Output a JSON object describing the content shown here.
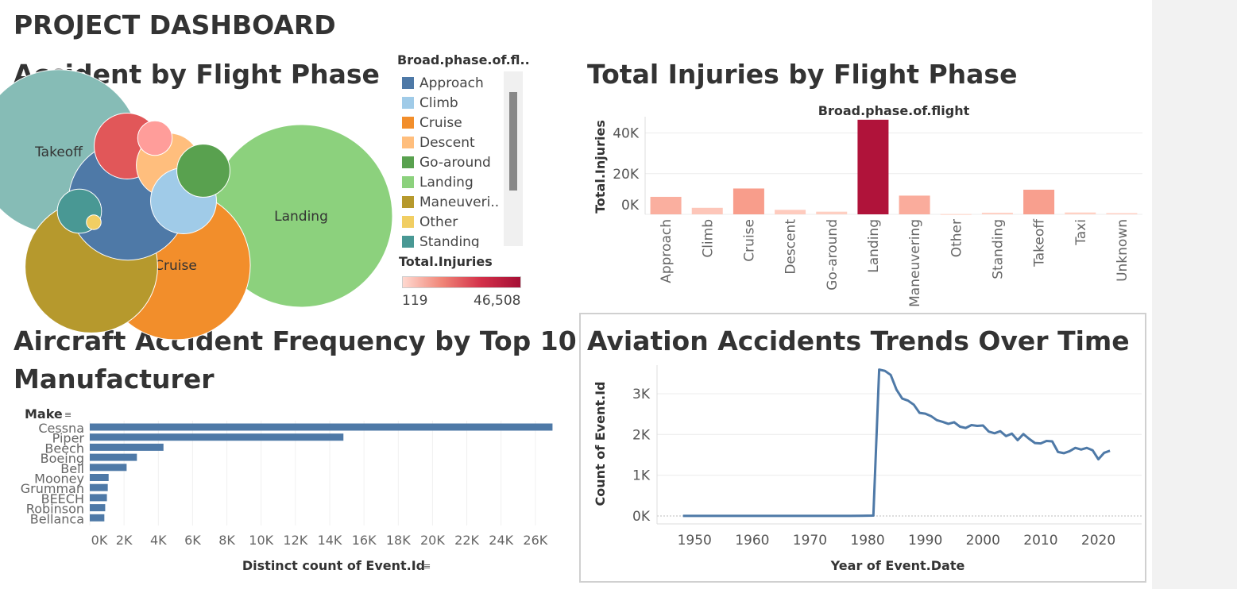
{
  "dashboard_title": "PROJECT DASHBOARD",
  "colors": {
    "Approach": "#4e79a7",
    "Climb": "#a0cbe8",
    "Cruise": "#f28e2b",
    "Descent": "#ffbe7d",
    "Go-around": "#59a14f",
    "Landing": "#8cd17d",
    "Maneuvering": "#b6992d",
    "Other": "#f1ce63",
    "Standing": "#499894",
    "Takeoff": "#86bcb6",
    "Taxi": "#e15759",
    "Unknown": "#ff9d9a",
    "bar_blue": "#4e79a7",
    "line_blue": "#4e79a7"
  },
  "bubble_panel": {
    "title": "Accident by Flight Phase",
    "legend_title": "Broad.phase.of.fl..",
    "legend_items": [
      "Approach",
      "Climb",
      "Cruise",
      "Descent",
      "Go-around",
      "Landing",
      "Maneuveri..",
      "Other",
      "Standing"
    ],
    "legend_keys": [
      "Approach",
      "Climb",
      "Cruise",
      "Descent",
      "Go-around",
      "Landing",
      "Maneuvering",
      "Other",
      "Standing"
    ],
    "color_legend_title": "Total.Injuries",
    "color_min": "119",
    "color_max": "46,508"
  },
  "injury_panel": {
    "title": "Total Injuries by Flight Phase"
  },
  "make_panel": {
    "title_line1": "Aircraft Accident Frequency by  Top 10",
    "title_line2": "Manufacturer"
  },
  "trend_panel": {
    "title": "Aviation Accidents Trends Over Time"
  },
  "chart_data": [
    {
      "type": "bubble",
      "title": "Accident by Flight Phase",
      "size_label": "accident count by Broad.phase.of.flight",
      "categories": [
        "Landing",
        "Takeoff",
        "Cruise",
        "Maneuvering",
        "Approach",
        "Taxi",
        "Descent",
        "Climb",
        "Go-around",
        "Standing",
        "Unknown",
        "Other"
      ],
      "labels_shown": [
        "Landing",
        "Takeoff",
        "Cruise"
      ],
      "values": [
        15400,
        12400,
        10300,
        8100,
        6500,
        2000,
        1900,
        2000,
        1300,
        900,
        550,
        100
      ]
    },
    {
      "type": "bar",
      "title": "Broad.phase.of.flight",
      "xlabel": "",
      "ylabel": "Total.Injuries",
      "categories": [
        "Approach",
        "Climb",
        "Cruise",
        "Descent",
        "Go-around",
        "Landing",
        "Maneuvering",
        "Other",
        "Standing",
        "Takeoff",
        "Taxi",
        "Unknown"
      ],
      "values": [
        8600,
        3200,
        12700,
        2200,
        1300,
        46508,
        9200,
        119,
        800,
        12100,
        900,
        600
      ],
      "yticks": [
        "0K",
        "20K",
        "40K"
      ],
      "ylim": [
        0,
        48000
      ],
      "color_scale": {
        "field": "Total.Injuries",
        "min": 119,
        "max": 46508
      }
    },
    {
      "type": "bar",
      "orientation": "horizontal",
      "title": "Make",
      "xlabel": "Distinct count of Event.Id",
      "ylabel": "Make",
      "categories": [
        "Cessna",
        "Piper",
        "Beech",
        "Boeing",
        "Bell",
        "Mooney",
        "Grumman",
        "BEECH",
        "Robinson",
        "Bellanca"
      ],
      "values": [
        27000,
        14800,
        4300,
        2750,
        2150,
        1100,
        1050,
        1000,
        900,
        850
      ],
      "xticks": [
        "0K",
        "2K",
        "4K",
        "6K",
        "8K",
        "10K",
        "12K",
        "14K",
        "16K",
        "18K",
        "20K",
        "22K",
        "24K",
        "26K"
      ],
      "xlim": [
        0,
        28000
      ]
    },
    {
      "type": "line",
      "title": "Aviation Accidents Trends Over Time",
      "xlabel": "Year of Event.Date",
      "ylabel": "Count of Event.Id",
      "xticks": [
        "1950",
        "1960",
        "1970",
        "1980",
        "1990",
        "2000",
        "2010",
        "2020"
      ],
      "yticks": [
        "0K",
        "1K",
        "2K",
        "3K"
      ],
      "xlim": [
        1943.5,
        2027.5
      ],
      "ylim": [
        0,
        3700
      ],
      "x": [
        1948,
        1962,
        1974,
        1977,
        1979,
        1981,
        1982,
        1983,
        1984,
        1985,
        1986,
        1987,
        1988,
        1989,
        1990,
        1991,
        1992,
        1993,
        1994,
        1995,
        1996,
        1997,
        1998,
        1999,
        2000,
        2001,
        2002,
        2003,
        2004,
        2005,
        2006,
        2007,
        2008,
        2009,
        2010,
        2011,
        2012,
        2013,
        2014,
        2015,
        2016,
        2017,
        2018,
        2019,
        2020,
        2021,
        2022
      ],
      "y": [
        2,
        2,
        2,
        2,
        3,
        10,
        3590,
        3560,
        3460,
        3100,
        2880,
        2830,
        2730,
        2530,
        2510,
        2450,
        2350,
        2310,
        2260,
        2300,
        2190,
        2160,
        2230,
        2210,
        2220,
        2070,
        2030,
        2080,
        1960,
        2020,
        1860,
        2010,
        1890,
        1790,
        1780,
        1840,
        1830,
        1570,
        1540,
        1590,
        1670,
        1630,
        1670,
        1610,
        1390,
        1550,
        1600
      ]
    }
  ]
}
